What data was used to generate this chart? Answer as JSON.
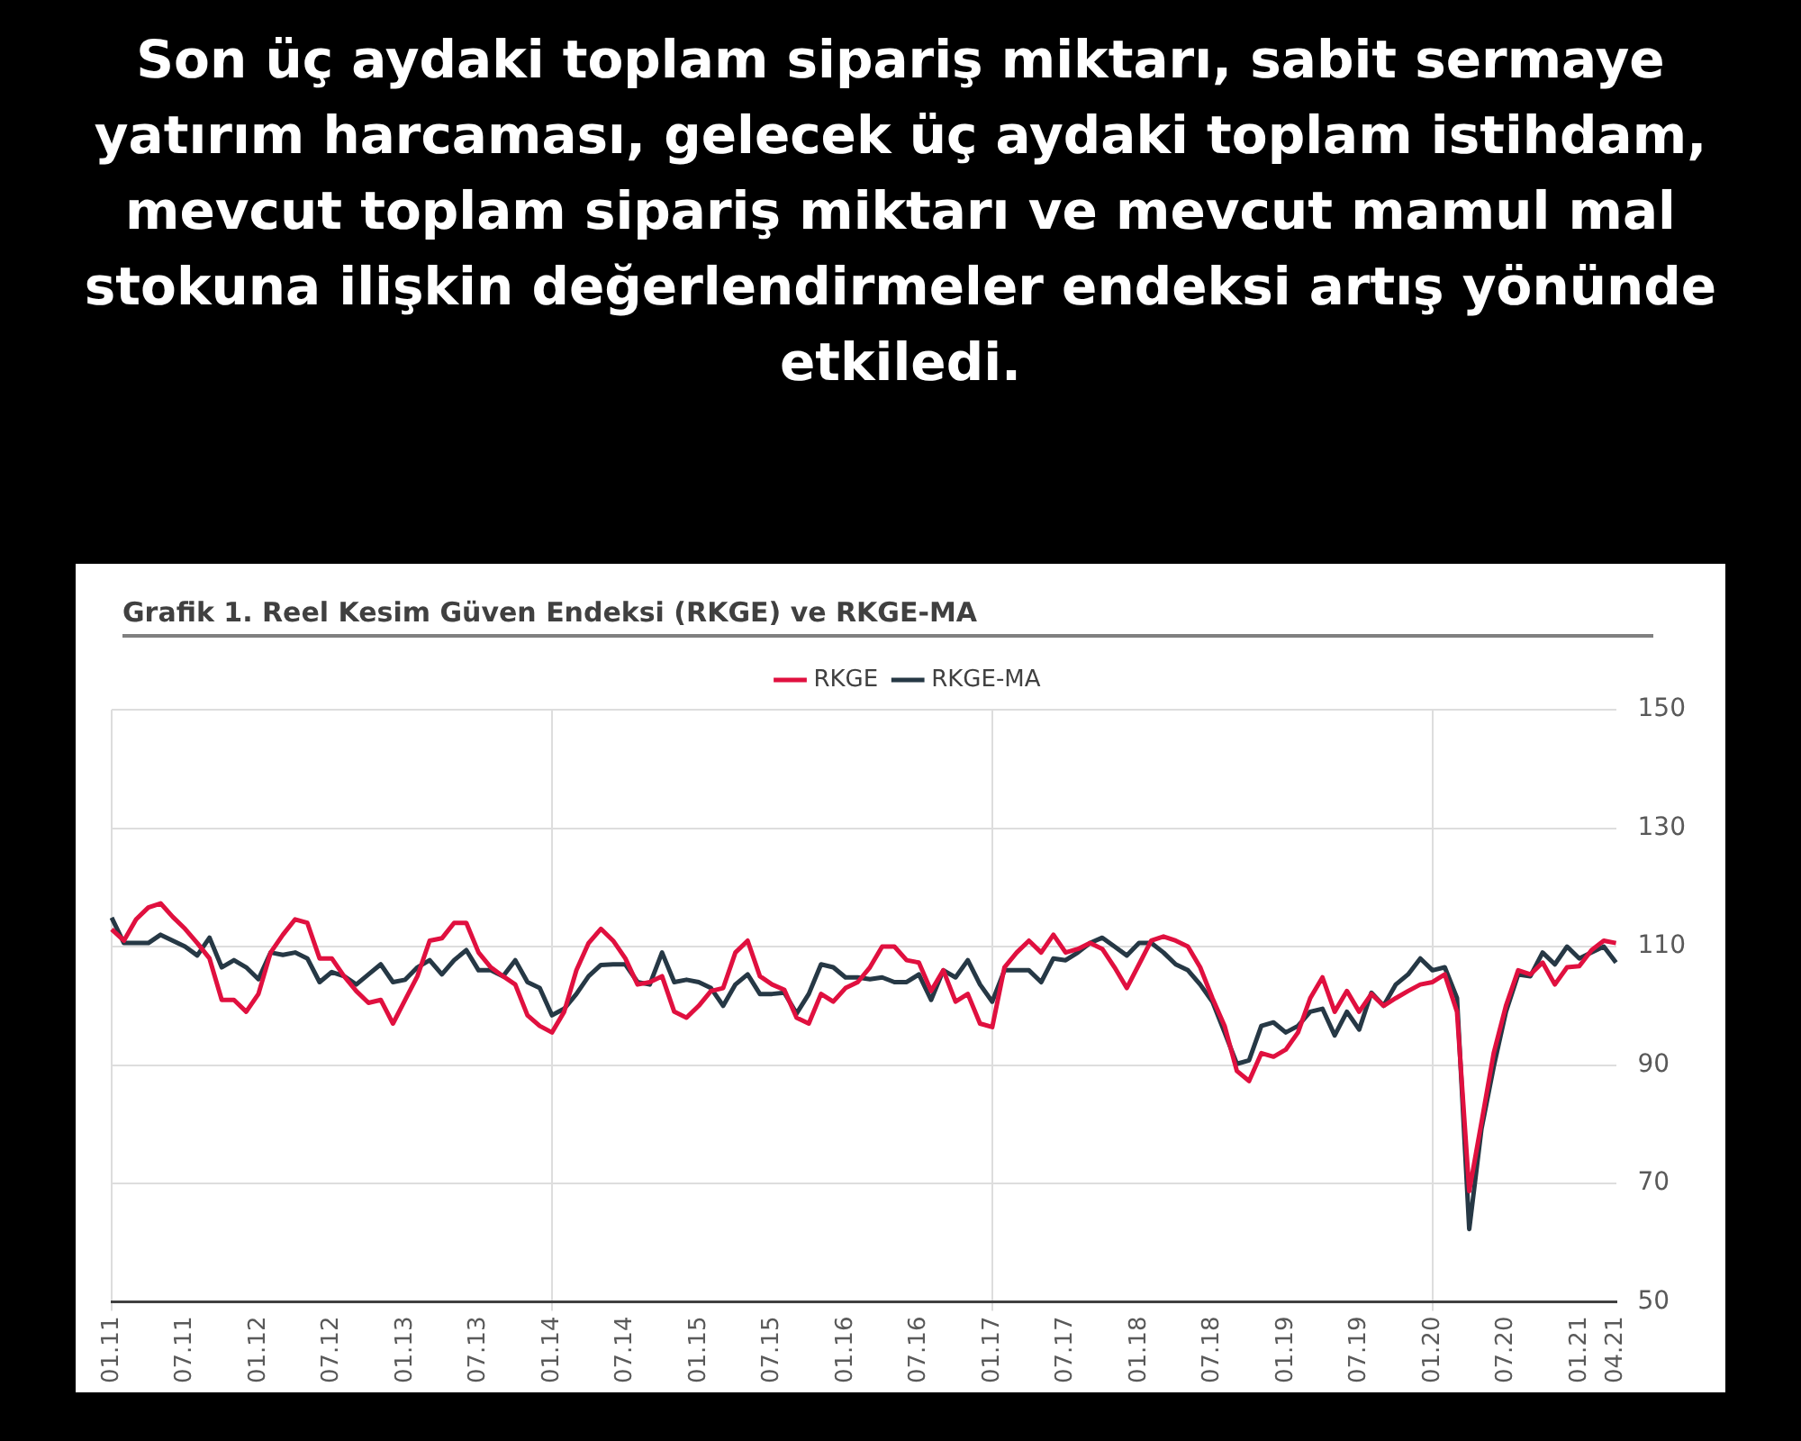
{
  "chart_data": {
    "type": "line",
    "title": "Son üç aydaki toplam sipariş miktarı, sabit sermaye yatırım harcaması, gelecek üç aydaki toplam istihdam, mevcut toplam sipariş miktarı ve mevcut mamul mal stokuna ilişkin değerlendirmeler endeksi artış yönünde etkiledi.",
    "subtitle": "Grafik 1. Reel Kesim Güven Endeksi (RKGE) ve RKGE-MA",
    "categories": [
      "01.11",
      null,
      null,
      null,
      null,
      null,
      "07.11",
      null,
      null,
      null,
      null,
      null,
      "01.12",
      null,
      null,
      null,
      null,
      null,
      "07.12",
      null,
      null,
      null,
      null,
      null,
      "01.13",
      null,
      null,
      null,
      null,
      null,
      "07.13",
      null,
      null,
      null,
      null,
      null,
      "01.14",
      null,
      null,
      null,
      null,
      null,
      "07.14",
      null,
      null,
      null,
      null,
      null,
      "01.15",
      null,
      null,
      null,
      null,
      null,
      "07.15",
      null,
      null,
      null,
      null,
      null,
      "01.16",
      null,
      null,
      null,
      null,
      null,
      "07.16",
      null,
      null,
      null,
      null,
      null,
      "01.17",
      null,
      null,
      null,
      null,
      null,
      "07.17",
      null,
      null,
      null,
      null,
      null,
      "01.18",
      null,
      null,
      null,
      null,
      null,
      "07.18",
      null,
      null,
      null,
      null,
      null,
      "01.19",
      null,
      null,
      null,
      null,
      null,
      "07.19",
      null,
      null,
      null,
      null,
      null,
      "01.20",
      null,
      null,
      null,
      null,
      null,
      "07.20",
      null,
      null,
      null,
      null,
      null,
      "01.21",
      null,
      null,
      "04.21"
    ],
    "series": [
      {
        "name": "RKGE",
        "color": "#e0103f",
        "values": [
          112.9,
          111,
          114.6,
          116.6,
          117.3,
          115,
          113,
          110.6,
          108,
          101,
          101,
          99,
          102,
          109,
          112,
          114.6,
          114,
          108,
          108,
          105,
          102.5,
          100.5,
          101,
          97,
          101,
          105,
          111,
          111.4,
          114,
          114,
          109,
          106.5,
          105,
          103.6,
          98.4,
          96.6,
          95.5,
          99,
          106,
          110.6,
          113,
          111,
          108,
          103.6,
          104,
          105,
          99,
          98,
          100,
          102.5,
          103,
          109,
          111,
          105,
          103.6,
          102.7,
          98,
          97,
          102,
          100.7,
          103,
          104,
          106.5,
          110,
          110,
          107.7,
          107.3,
          102.5,
          106,
          100.7,
          102,
          97,
          96.4,
          106.5,
          109,
          111,
          109,
          112,
          109,
          109.6,
          110.6,
          109.6,
          106.5,
          103,
          107,
          111,
          111.7,
          111,
          110,
          106.5,
          101.3,
          96.6,
          89,
          87.3,
          92,
          91.4,
          92.6,
          95.5,
          101.3,
          104.8,
          99,
          102.5,
          99,
          102,
          100,
          101.3,
          102.5,
          103.6,
          104,
          105.3,
          99,
          68.7,
          80.3,
          92,
          100,
          106,
          105.3,
          107.3,
          103.6,
          106.5,
          106.7,
          109.4,
          111,
          110.6
        ]
      },
      {
        "name": "RKGE-MA",
        "color": "#263845",
        "values": [
          114.9,
          110.6,
          110.6,
          110.6,
          112,
          111,
          110,
          108.5,
          111.5,
          106.5,
          107.7,
          106.5,
          104.5,
          109,
          108.6,
          109,
          108,
          104,
          105.7,
          105,
          103.6,
          105.3,
          107,
          104,
          104.4,
          106.5,
          107.7,
          105.3,
          107.7,
          109.4,
          106,
          106,
          105,
          107.7,
          104,
          103,
          98.4,
          99.5,
          102,
          105,
          106.9,
          107,
          107,
          104,
          103.6,
          109,
          104,
          104.4,
          104,
          103,
          100,
          103.6,
          105.3,
          102,
          102,
          102.2,
          98.7,
          102,
          107,
          106.5,
          104.8,
          104.8,
          104.5,
          104.8,
          104,
          104,
          105.3,
          101,
          106,
          104.8,
          107.7,
          103.6,
          100.7,
          106,
          106,
          106,
          104,
          108,
          107.7,
          109,
          110.6,
          111.5,
          110,
          108.5,
          110.6,
          110.6,
          109,
          107,
          106,
          103.6,
          100.7,
          95.5,
          90.2,
          90.8,
          96.6,
          97.2,
          95.5,
          96.6,
          99,
          99.5,
          95,
          99,
          96,
          102.2,
          100,
          103.6,
          105.3,
          108,
          106,
          106.5,
          101.3,
          62.3,
          79.2,
          89.7,
          99,
          105.3,
          105,
          109,
          107,
          110,
          108,
          109,
          110,
          107.3
        ]
      }
    ],
    "ylim": [
      50,
      150
    ],
    "yticks": [
      50,
      70,
      90,
      110,
      130,
      150
    ],
    "grid": true,
    "legend": "top",
    "marker": "none",
    "line_style": "solid"
  }
}
